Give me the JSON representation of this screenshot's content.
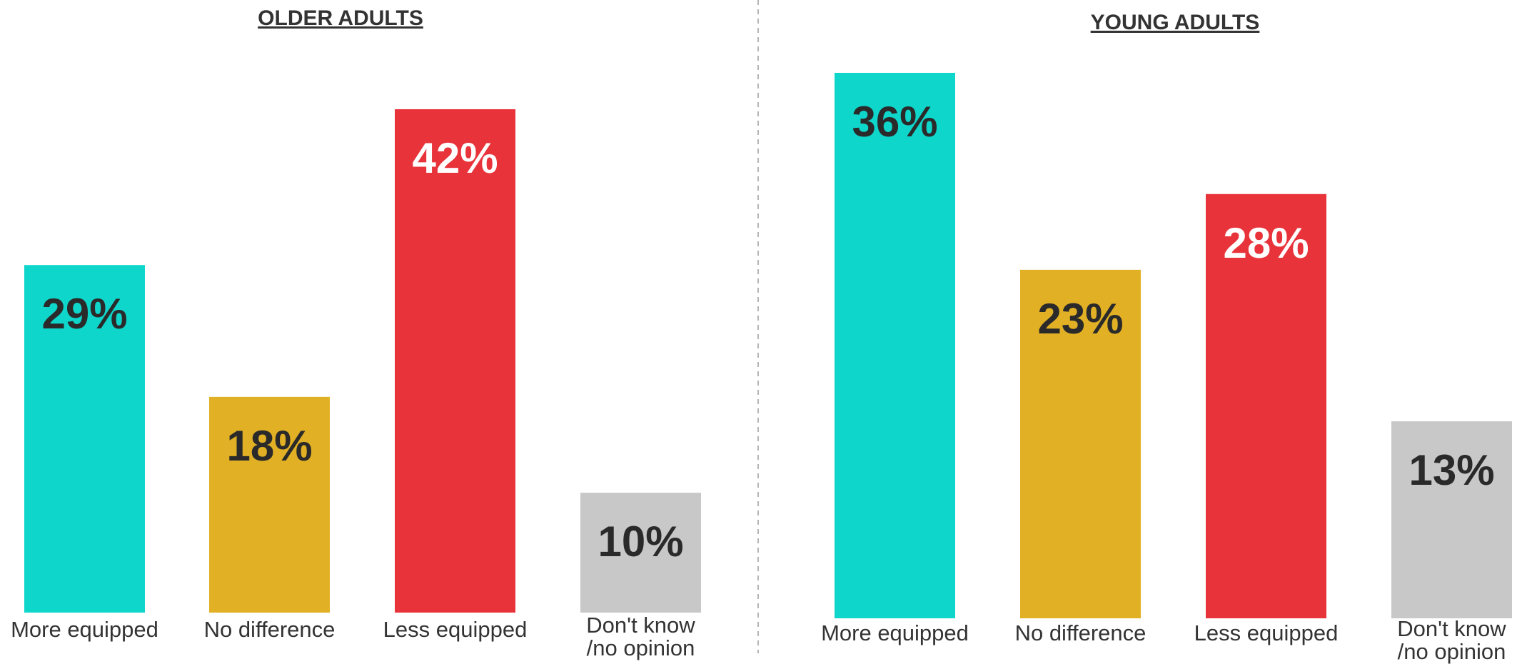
{
  "chart_data": [
    {
      "type": "bar",
      "title": "OLDER ADULTS",
      "categories": [
        "More equipped",
        "No difference",
        "Less equipped",
        "Don't know /no opinion"
      ],
      "category_lines": [
        [
          "More equipped"
        ],
        [
          "No difference"
        ],
        [
          "Less equipped"
        ],
        [
          "Don't know",
          "/no opinion"
        ]
      ],
      "values": [
        29,
        18,
        42,
        10
      ],
      "value_labels": [
        "29%",
        "18%",
        "42%",
        "10%"
      ],
      "ylim": [
        0,
        42
      ],
      "grid": false,
      "legend": "none"
    },
    {
      "type": "bar",
      "title": "YOUNG ADULTS",
      "categories": [
        "More equipped",
        "No difference",
        "Less equipped",
        "Don't know /no opinion"
      ],
      "category_lines": [
        [
          "More equipped"
        ],
        [
          "No difference"
        ],
        [
          "Less equipped"
        ],
        [
          "Don't know",
          "/no opinion"
        ]
      ],
      "values": [
        36,
        23,
        28,
        13
      ],
      "value_labels": [
        "36%",
        "23%",
        "28%",
        "13%"
      ],
      "ylim": [
        0,
        36
      ],
      "grid": false,
      "legend": "none"
    }
  ],
  "colors": {
    "more_equipped": "#0fd6cb",
    "no_difference": "#e1b024",
    "less_equipped": "#e8333a",
    "dont_know": "#c8c8c8",
    "dark_label": "#2a2a2a",
    "light_label": "#ffffff",
    "divider": "#b5b5b5"
  },
  "bar_colors": [
    "#0fd6cb",
    "#e1b024",
    "#e8333a",
    "#c8c8c8"
  ],
  "value_label_colors": [
    "#2a2a2a",
    "#2a2a2a",
    "#ffffff",
    "#2a2a2a"
  ]
}
